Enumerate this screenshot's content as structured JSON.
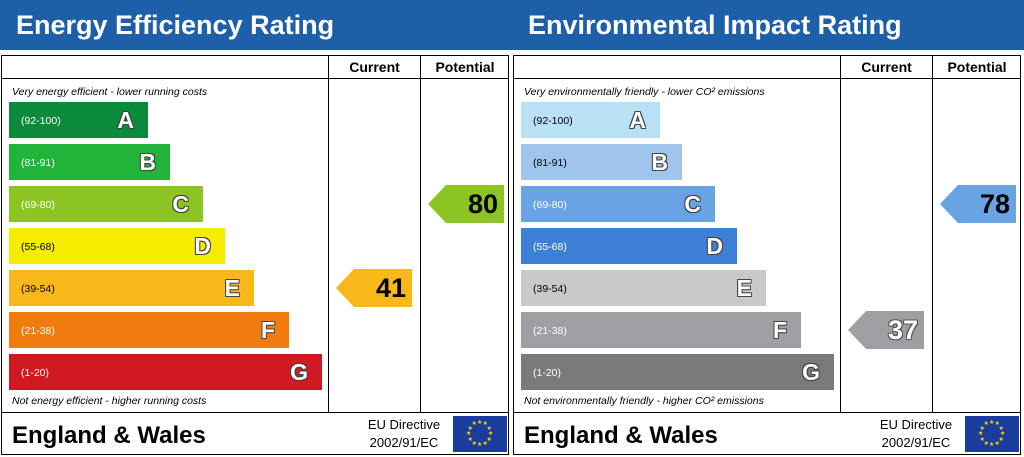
{
  "panels": [
    {
      "title": "Energy Efficiency Rating",
      "header_current": "Current",
      "header_potential": "Potential",
      "top_caption": "Very energy efficient - lower running costs",
      "bottom_caption": "Not energy efficient - higher running costs",
      "footer_region": "England & Wales",
      "footer_directive_line1": "EU Directive",
      "footer_directive_line2": "2002/91/EC",
      "bands": [
        {
          "range": "(92-100)",
          "letter": "A",
          "color": "#0a8a3a",
          "range_color": "#ffffff"
        },
        {
          "range": "(81-91)",
          "letter": "B",
          "color": "#22b33a",
          "range_color": "#ffffff"
        },
        {
          "range": "(69-80)",
          "letter": "C",
          "color": "#8cc523",
          "range_color": "#ffffff"
        },
        {
          "range": "(55-68)",
          "letter": "D",
          "color": "#f5ec00",
          "range_color": "#000000"
        },
        {
          "range": "(39-54)",
          "letter": "E",
          "color": "#f8b819",
          "range_color": "#000000"
        },
        {
          "range": "(21-38)",
          "letter": "F",
          "color": "#f07c0f",
          "range_color": "#ffffff"
        },
        {
          "range": "(1-20)",
          "letter": "G",
          "color": "#d01920",
          "range_color": "#ffffff"
        }
      ],
      "current": {
        "value": "41",
        "band": "E",
        "color": "#f8b819"
      },
      "potential": {
        "value": "80",
        "band": "C",
        "color": "#8cc523"
      }
    },
    {
      "title": "Environmental Impact Rating",
      "header_current": "Current",
      "header_potential": "Potential",
      "top_caption": "Very environmentally friendly - lower CO² emissions",
      "bottom_caption": "Not environmentally friendly - higher CO² emissions",
      "footer_region": "England & Wales",
      "footer_directive_line1": "EU Directive",
      "footer_directive_line2": "2002/91/EC",
      "bands": [
        {
          "range": "(92-100)",
          "letter": "A",
          "color": "#b8e1f6",
          "range_color": "#000000"
        },
        {
          "range": "(81-91)",
          "letter": "B",
          "color": "#9fc5ec",
          "range_color": "#000000"
        },
        {
          "range": "(69-80)",
          "letter": "C",
          "color": "#6aa3e3",
          "range_color": "#ffffff"
        },
        {
          "range": "(55-68)",
          "letter": "D",
          "color": "#3d80d8",
          "range_color": "#ffffff"
        },
        {
          "range": "(39-54)",
          "letter": "E",
          "color": "#c9c9cb",
          "range_color": "#000000"
        },
        {
          "range": "(21-38)",
          "letter": "F",
          "color": "#a19ea3",
          "range_color": "#ffffff"
        },
        {
          "range": "(1-20)",
          "letter": "G",
          "color": "#7b797c",
          "range_color": "#ffffff"
        }
      ],
      "current": {
        "value": "37",
        "band": "F",
        "color": "#a19ea3"
      },
      "potential": {
        "value": "78",
        "band": "C",
        "color": "#6aa3e3"
      }
    }
  ],
  "chart_data": [
    {
      "type": "bar",
      "title": "Energy Efficiency Rating",
      "categories": [
        "A",
        "B",
        "C",
        "D",
        "E",
        "F",
        "G"
      ],
      "ranges": [
        "(92-100)",
        "(81-91)",
        "(69-80)",
        "(55-68)",
        "(39-54)",
        "(21-38)",
        "(1-20)"
      ],
      "current": 41,
      "potential": 80
    },
    {
      "type": "bar",
      "title": "Environmental Impact Rating",
      "categories": [
        "A",
        "B",
        "C",
        "D",
        "E",
        "F",
        "G"
      ],
      "ranges": [
        "(92-100)",
        "(81-91)",
        "(69-80)",
        "(55-68)",
        "(39-54)",
        "(21-38)",
        "(1-20)"
      ],
      "current": 37,
      "potential": 78
    }
  ]
}
